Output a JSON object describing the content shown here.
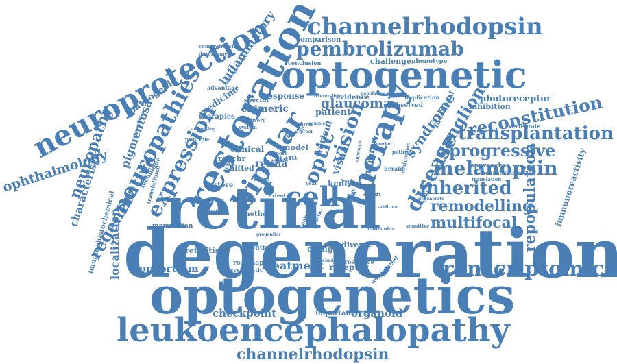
{
  "color": "#4a7fb5",
  "words": [
    "degeneration",
    "optogenetics",
    "retinal",
    "leukoencephalopathy",
    "optogenetic",
    "restoration",
    "neuroprotection",
    "channelrhodopsin",
    "channelrhodopsin",
    "therapy",
    "bipolar",
    "transcriptomics",
    "pembrolizumab",
    "neuropathies",
    "expression",
    "neuropathy",
    "transplantation",
    "reconstitution",
    "melanopsin",
    "progressive",
    "disease",
    "inherited",
    "remodelling",
    "multifocal",
    "cell",
    "repopulation",
    "ganglion",
    "regenerative",
    "ophthalmology",
    "vision",
    "optic",
    "syndrome",
    "treatment",
    "consortium",
    "checkpoint",
    "organoid",
    "inflammatory",
    "glaucoma",
    "pigmentosa",
    "localization",
    "characteristic",
    "immunoreactivity",
    "photoreceptor",
    "retina",
    "chimeric",
    "visual",
    "immune",
    "variant",
    "model",
    "stem",
    "pathogenic",
    "medicine",
    "therapies",
    "clinical",
    "reachr",
    "restore",
    "retinitis",
    "shifted",
    "method",
    "mammalian",
    "potential",
    "change",
    "diverse",
    "receptor",
    "important",
    "roadmap",
    "systematic",
    "neuroscience",
    "associated",
    "kcne",
    "patient",
    "response",
    "evidence",
    "comparison",
    "specific",
    "challenge",
    "phenotype",
    "conclusion",
    "inhibition",
    "observed",
    "implication",
    "functional",
    "vertebrate",
    "approaches",
    "neurotransmitter",
    "translation",
    "sensitive",
    "advantage",
    "independent",
    "comprehensive",
    "development",
    "technique",
    "translational",
    "immunohistochemical",
    "delivery",
    "system",
    "mouse",
    "neuron",
    "target",
    "report",
    "result",
    "lesion",
    "cohort",
    "herald",
    "pathway",
    "marker",
    "dysfunction",
    "irreversible",
    "population",
    "principle",
    "underlying",
    "transcription",
    "complex",
    "molecular",
    "degenerate",
    "finding",
    "genetic",
    "extent",
    "year",
    "death",
    "level",
    "approach",
    "proof",
    "illustration",
    "progenitor",
    "addition",
    "blockade"
  ]
}
